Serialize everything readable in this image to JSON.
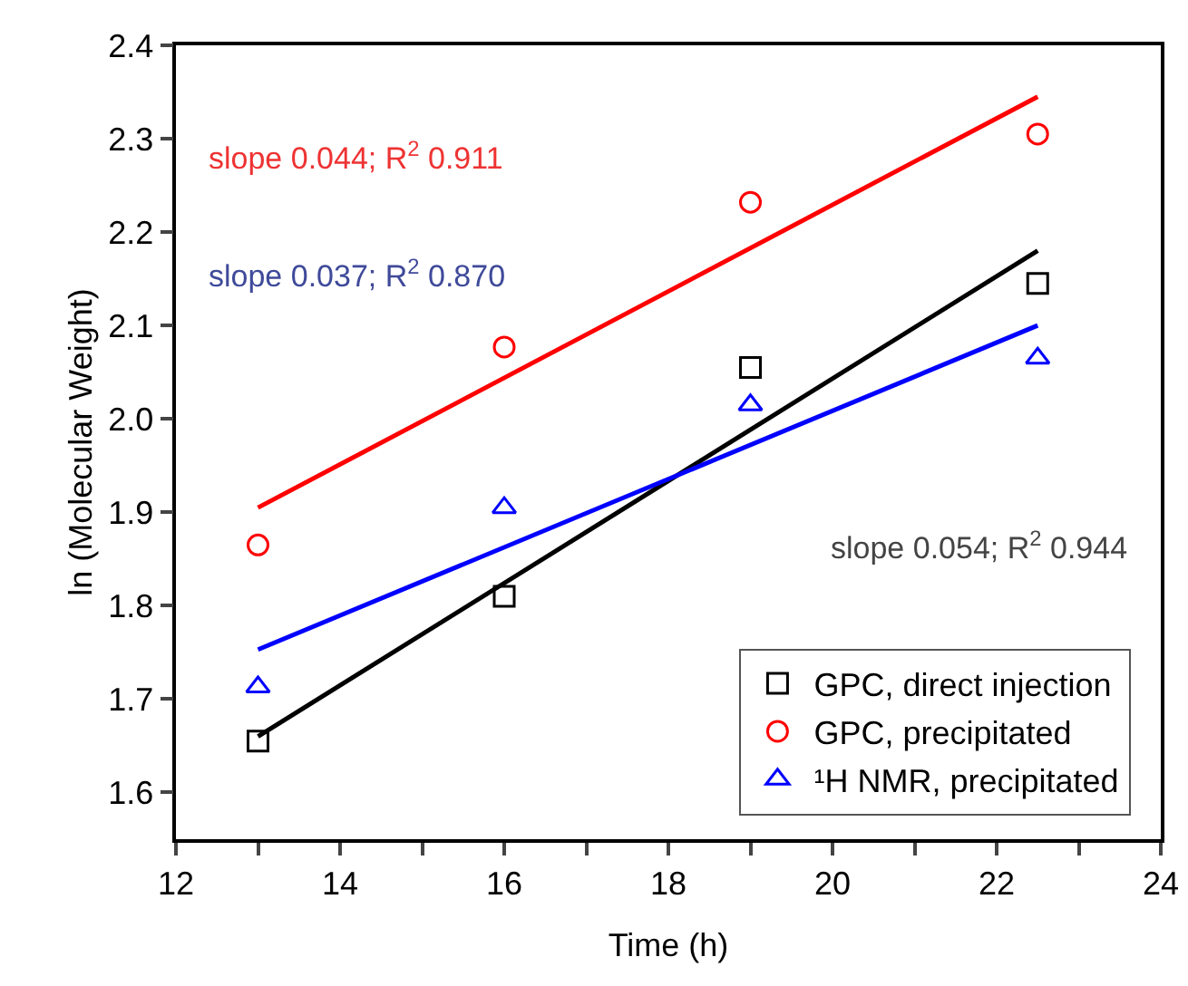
{
  "chart_data": {
    "type": "scatter",
    "xlabel": "Time (h)",
    "ylabel": "ln (Molecular Weight)",
    "xlim": [
      12,
      24
    ],
    "ylim": [
      1.55,
      2.4
    ],
    "xticks": [
      12,
      {
        "value": 13,
        "label": null
      },
      14,
      {
        "value": 15,
        "label": null
      },
      16,
      {
        "value": 17,
        "label": null
      },
      18,
      {
        "value": 19,
        "label": null
      },
      20,
      {
        "value": 21,
        "label": null
      },
      22,
      {
        "value": 23,
        "label": null
      },
      24
    ],
    "yticks": [
      1.6,
      1.7,
      1.8,
      1.9,
      {
        "value": 2,
        "label": "2.0"
      },
      2.1,
      2.2,
      2.3,
      2.4
    ],
    "grid": false,
    "legend": "bottom right",
    "series": [
      {
        "name": "GPC, direct injection",
        "color": "#000000",
        "marker": "square",
        "x": [
          13,
          16,
          19,
          22.5
        ],
        "values": [
          1.655,
          1.81,
          2.055,
          2.145
        ]
      },
      {
        "name": "GPC, precipitated",
        "color": "#ff0000",
        "marker": "circle",
        "x": [
          13,
          16,
          19,
          22.5
        ],
        "values": [
          1.865,
          2.077,
          2.232,
          2.305
        ]
      },
      {
        "name": "¹H NMR, precipitated",
        "color": "#0000ff",
        "marker": "triangle",
        "x": [
          13,
          16,
          19,
          22.5
        ],
        "values": [
          1.713,
          1.905,
          2.015,
          2.065
        ]
      },
      {
        "type": "line",
        "color": "#000000",
        "x": [
          13,
          22.5
        ],
        "values": [
          1.66,
          2.18
        ]
      },
      {
        "type": "line",
        "color": "#ff0000",
        "x": [
          13,
          22.5
        ],
        "values": [
          1.905,
          2.345
        ]
      },
      {
        "type": "line",
        "color": "#0000ff",
        "x": [
          13,
          22.5
        ],
        "values": [
          1.753,
          2.1
        ]
      }
    ],
    "annotations": [
      "slope 0.044; R$^{2}$ 0.911",
      "slope 0.037; R$^{2}$ 0.870",
      "slope 0.054; R$^{2}$ 0.944"
    ]
  }
}
